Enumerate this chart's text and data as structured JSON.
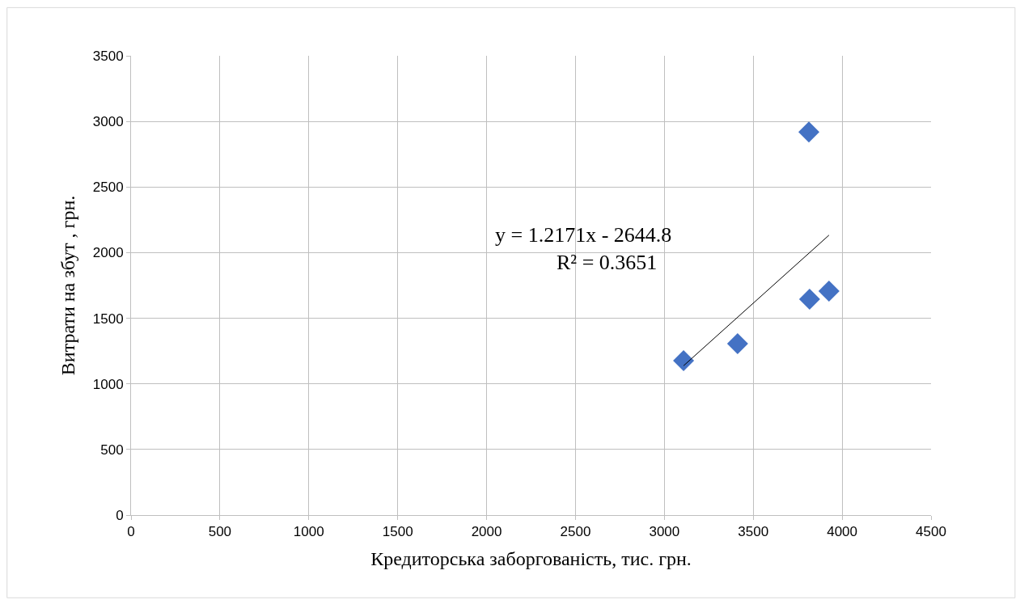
{
  "chart_data": {
    "type": "scatter",
    "xlabel": "Кредиторська заборгованість, тис. грн.",
    "ylabel": "Витрати на збут , грн.",
    "series": [
      {
        "color": "#4472c4",
        "marker": "diamond",
        "x": [
          3108,
          3412,
          3813,
          3817,
          3926
        ],
        "values": [
          1177,
          1306,
          2920,
          1645,
          1707
        ]
      },
      {
        "type": "line",
        "color": "#000000",
        "marker": "none",
        "line_style": "solid",
        "x": [
          3108,
          3926
        ],
        "values": [
          1138,
          2133
        ]
      }
    ],
    "annotations": [
      "y = 1.2171x - 2644.8",
      "R² = 0.3651"
    ],
    "xlim": [
      0,
      4500
    ],
    "xticks": [
      0,
      500,
      1000,
      1500,
      2000,
      2500,
      3000,
      3500,
      4000,
      4500
    ],
    "ylim": [
      0,
      3500
    ],
    "yticks": [
      0,
      500,
      1000,
      1500,
      2000,
      2500,
      3000,
      3500
    ],
    "grid": true
  }
}
